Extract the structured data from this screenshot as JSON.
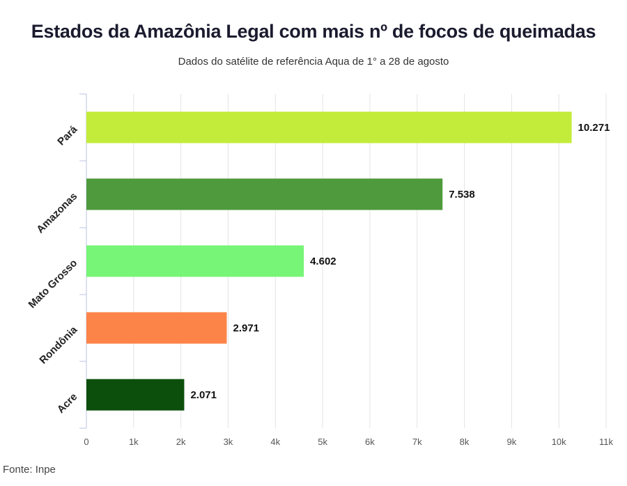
{
  "title": "Estados da Amazônia Legal com mais nº de focos de queimadas",
  "subtitle": "Dados do satélite de referência Aqua de 1° a 28 de agosto",
  "source": "Fonte: Inpe",
  "chart_data": {
    "type": "bar",
    "orientation": "horizontal",
    "categories": [
      "Pará",
      "Amazonas",
      "Mato Grosso",
      "Rondônia",
      "Acre"
    ],
    "values": [
      10271,
      7538,
      4602,
      2971,
      2071
    ],
    "value_labels": [
      "10.271",
      "7.538",
      "4.602",
      "2.971",
      "2.071"
    ],
    "colors": [
      "#c3ec3a",
      "#4e9a3c",
      "#76f576",
      "#fd8448",
      "#0c4f0c"
    ],
    "xlim": [
      0,
      11000
    ],
    "x_ticks": [
      0,
      1000,
      2000,
      3000,
      4000,
      5000,
      6000,
      7000,
      8000,
      9000,
      10000,
      11000
    ],
    "x_tick_labels": [
      "0",
      "1k",
      "2k",
      "3k",
      "4k",
      "5k",
      "6k",
      "7k",
      "8k",
      "9k",
      "10k",
      "11k"
    ],
    "grid": true
  }
}
